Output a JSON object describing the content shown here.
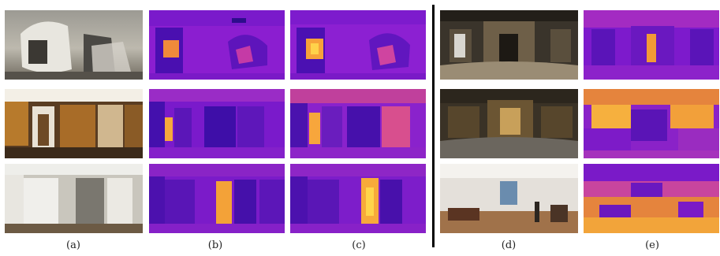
{
  "columns": [
    "(a)",
    "(b)",
    "(c)",
    "(d)",
    "(e)"
  ],
  "colors": {
    "depth_far": "#3a0aa6",
    "depth_mid": "#8a12c9",
    "depth_near": "#f2a23a",
    "depth_nearest": "#ffd84a",
    "separator": "#000000"
  }
}
